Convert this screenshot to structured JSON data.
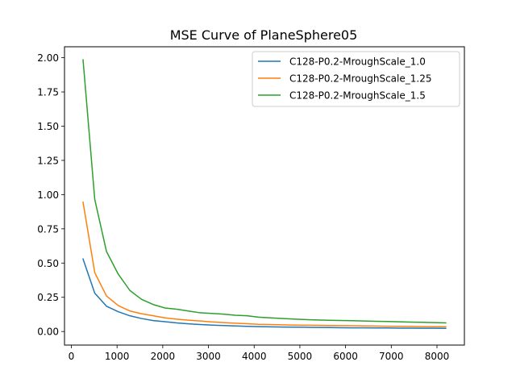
{
  "chart_data": {
    "type": "line",
    "title": "MSE Curve of PlaneSphere05",
    "xlabel": "",
    "ylabel": "",
    "xlim": [
      -150,
      8600
    ],
    "ylim": [
      -0.099,
      2.08
    ],
    "xticks": [
      0,
      1000,
      2000,
      3000,
      4000,
      5000,
      6000,
      7000,
      8000
    ],
    "yticks": [
      0.0,
      0.25,
      0.5,
      0.75,
      1.0,
      1.25,
      1.5,
      1.75,
      2.0
    ],
    "xtick_labels": [
      "0",
      "1000",
      "2000",
      "3000",
      "4000",
      "5000",
      "6000",
      "7000",
      "8000"
    ],
    "ytick_labels": [
      "0.00",
      "0.25",
      "0.50",
      "0.75",
      "1.00",
      "1.25",
      "1.50",
      "1.75",
      "2.00"
    ],
    "grid": false,
    "legend_position": "top-right",
    "x": [
      256,
      512,
      768,
      1024,
      1280,
      1536,
      1792,
      2048,
      2304,
      2560,
      2816,
      3072,
      3328,
      3584,
      3840,
      4096,
      4352,
      4608,
      4864,
      5120,
      5376,
      5632,
      5888,
      6144,
      6400,
      6656,
      6912,
      7168,
      7424,
      7680,
      7936,
      8192
    ],
    "series": [
      {
        "name": "C128-P0.2-MroughScale_1.0",
        "color": "#1f77b4",
        "values": [
          0.53,
          0.28,
          0.185,
          0.145,
          0.115,
          0.095,
          0.08,
          0.072,
          0.063,
          0.056,
          0.051,
          0.047,
          0.044,
          0.041,
          0.038,
          0.036,
          0.034,
          0.033,
          0.032,
          0.031,
          0.03,
          0.029,
          0.028,
          0.027,
          0.027,
          0.026,
          0.026,
          0.025,
          0.025,
          0.024,
          0.024,
          0.023
        ]
      },
      {
        "name": "C128-P0.2-MroughScale_1.25",
        "color": "#ff7f0e",
        "values": [
          0.945,
          0.43,
          0.26,
          0.19,
          0.15,
          0.13,
          0.115,
          0.1,
          0.09,
          0.083,
          0.077,
          0.07,
          0.065,
          0.061,
          0.057,
          0.053,
          0.051,
          0.049,
          0.047,
          0.046,
          0.045,
          0.044,
          0.043,
          0.042,
          0.041,
          0.04,
          0.039,
          0.038,
          0.037,
          0.036,
          0.035,
          0.035
        ]
      },
      {
        "name": "C128-P0.2-MroughScale_1.5",
        "color": "#2ca02c",
        "values": [
          1.985,
          0.965,
          0.585,
          0.42,
          0.3,
          0.235,
          0.197,
          0.172,
          0.163,
          0.15,
          0.137,
          0.132,
          0.127,
          0.119,
          0.115,
          0.105,
          0.1,
          0.095,
          0.091,
          0.087,
          0.084,
          0.082,
          0.081,
          0.079,
          0.077,
          0.075,
          0.073,
          0.071,
          0.069,
          0.067,
          0.065,
          0.063
        ]
      }
    ]
  }
}
